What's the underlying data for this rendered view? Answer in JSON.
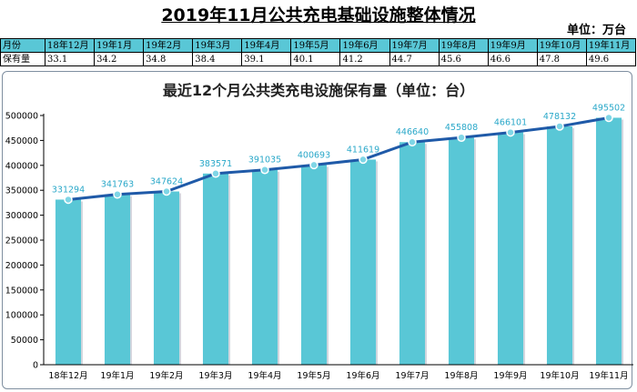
{
  "header": {
    "title": "2019年11月公共充电基础设施整体情况",
    "unit": "单位：万台"
  },
  "summary_table": {
    "month_label": "月份",
    "holdings_label": "保有量",
    "months": [
      "18年12月",
      "19年1月",
      "19年2月",
      "19年3月",
      "19年4月",
      "19年5月",
      "19年6月",
      "19年7月",
      "19年8月",
      "19年9月",
      "19年10月",
      "19年11月"
    ],
    "values": [
      "33.1",
      "34.2",
      "34.8",
      "38.4",
      "39.1",
      "40.1",
      "41.2",
      "44.7",
      "45.6",
      "46.6",
      "47.8",
      "49.6"
    ]
  },
  "chart_data": {
    "type": "bar",
    "title": "最近12个月公共类充电设施保有量（单位：台）",
    "categories": [
      "18年12月",
      "19年1月",
      "19年2月",
      "19年3月",
      "19年4月",
      "19年5月",
      "19年6月",
      "19年7月",
      "19年8月",
      "19年9月",
      "19年10月",
      "19年11月"
    ],
    "values": [
      331294,
      341763,
      347624,
      383571,
      391035,
      400693,
      411619,
      446640,
      455808,
      466101,
      478132,
      495502
    ],
    "overlay": "line",
    "ylim": [
      0,
      500000
    ],
    "yticks": [
      "0",
      "50000",
      "100000",
      "150000",
      "200000",
      "250000",
      "300000",
      "350000",
      "400000",
      "450000",
      "500000"
    ],
    "grid": false,
    "colors": {
      "bar": "#59c7d6",
      "line": "#1f5aa8",
      "marker": "#7fd6e6",
      "label": "#2aa8c9"
    }
  }
}
